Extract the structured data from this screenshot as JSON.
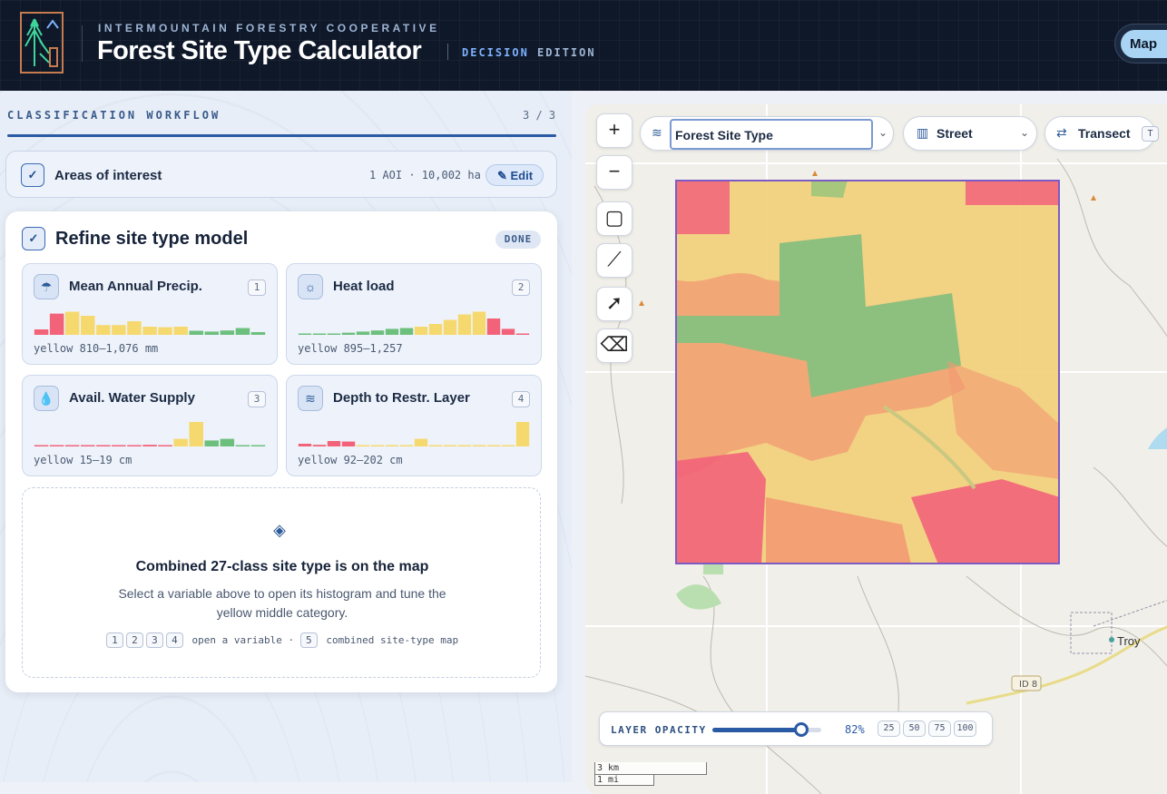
{
  "header": {
    "org": "INTERMOUNTAIN FORESTRY COOPERATIVE",
    "title": "Forest Site Type Calculator",
    "edition_a": "DECISION",
    "edition_b": "EDITION",
    "view_button": "Map"
  },
  "workflow": {
    "label": "CLASSIFICATION WORKFLOW",
    "count": "3 / 3",
    "aoi": {
      "check": "✓",
      "title": "Areas of interest",
      "meta": "1 AOI · 10,002 ha",
      "edit": "Edit"
    },
    "model": {
      "check": "✓",
      "title": "Refine site type model",
      "status": "DONE",
      "variables": [
        {
          "title": "Mean Annual Precip.",
          "key": "1",
          "range": "yellow 810–1,076 mm",
          "icon": "cloud-rain-icon",
          "bars": [
            0.2,
            0.78,
            0.85,
            0.7,
            0.36,
            0.36,
            0.5,
            0.3,
            0.28,
            0.3,
            0.15,
            0.12,
            0.16,
            0.25,
            0.1
          ],
          "colors": [
            "r",
            "r",
            "y",
            "y",
            "y",
            "y",
            "y",
            "y",
            "y",
            "y",
            "g",
            "g",
            "g",
            "g",
            "g"
          ]
        },
        {
          "title": "Heat load",
          "key": "2",
          "range": "yellow 895–1,257",
          "icon": "sun-icon",
          "bars": [
            0.03,
            0.04,
            0.05,
            0.08,
            0.12,
            0.16,
            0.22,
            0.25,
            0.3,
            0.4,
            0.55,
            0.75,
            0.85,
            0.6,
            0.22,
            0.04
          ],
          "colors": [
            "g",
            "g",
            "g",
            "g",
            "g",
            "g",
            "g",
            "g",
            "y",
            "y",
            "y",
            "y",
            "y",
            "r",
            "r",
            "r"
          ]
        },
        {
          "title": "Avail. Water Supply",
          "key": "3",
          "range": "yellow 15–19 cm",
          "icon": "water-drops-icon",
          "bars": [
            0.03,
            0.03,
            0.03,
            0.03,
            0.03,
            0.03,
            0.04,
            0.06,
            0.05,
            0.28,
            0.9,
            0.22,
            0.28,
            0.04,
            0.03
          ],
          "colors": [
            "r",
            "r",
            "r",
            "r",
            "r",
            "r",
            "r",
            "r",
            "r",
            "y",
            "y",
            "g",
            "g",
            "g",
            "g"
          ]
        },
        {
          "title": "Depth to Restr. Layer",
          "key": "4",
          "range": "yellow 92–202 cm",
          "icon": "layers-icon",
          "bars": [
            0.1,
            0.06,
            0.2,
            0.18,
            0.05,
            0.04,
            0.05,
            0.03,
            0.28,
            0.04,
            0.03,
            0.03,
            0.03,
            0.03,
            0.03,
            0.9
          ],
          "colors": [
            "r",
            "r",
            "r",
            "r",
            "y",
            "y",
            "y",
            "y",
            "y",
            "y",
            "y",
            "y",
            "y",
            "y",
            "y",
            "y"
          ]
        }
      ],
      "combined": {
        "title": "Combined 27-class site type is on the map",
        "subtitle": "Select a variable above to open its histogram and tune the yellow middle category.",
        "keys_a": [
          "1",
          "2",
          "3",
          "4"
        ],
        "hint_a": "open a variable ·",
        "key_b": "5",
        "hint_b": "combined site-type map"
      }
    }
  },
  "map": {
    "layer_select": "Forest Site Type",
    "basemap": "Street",
    "transect": "Transect",
    "transect_key": "T",
    "place": "Troy",
    "route": "ID 8",
    "opacity_label": "LAYER OPACITY",
    "opacity_value": 0.82,
    "opacity_text": "82%",
    "opacity_presets": [
      "25",
      "50",
      "75",
      "100"
    ],
    "scale_km": "3 km",
    "scale_mi": "1 mi",
    "colors": {
      "red": "#f2637a",
      "orange": "#f29a72",
      "yellow": "#f2cf7a",
      "green": "#8dbf7e",
      "aoi": "#7c5cc4",
      "accent": "#2a5aa4"
    }
  }
}
